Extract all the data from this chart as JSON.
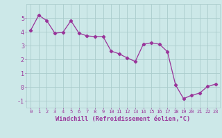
{
  "x": [
    0,
    1,
    2,
    3,
    4,
    5,
    6,
    7,
    8,
    9,
    10,
    11,
    12,
    13,
    14,
    15,
    16,
    17,
    18,
    19,
    20,
    21,
    22,
    23
  ],
  "y": [
    4.1,
    5.2,
    4.8,
    3.9,
    3.95,
    4.8,
    3.9,
    3.7,
    3.65,
    3.65,
    2.6,
    2.4,
    2.1,
    1.85,
    3.1,
    3.2,
    3.1,
    2.55,
    0.15,
    -0.85,
    -0.6,
    -0.45,
    0.05,
    0.2
  ],
  "line_color": "#993399",
  "marker": "D",
  "marker_size": 2.2,
  "bg_color": "#cce8e8",
  "grid_color": "#aacccc",
  "xlabel": "Windchill (Refroidissement éolien,°C)",
  "xlim": [
    -0.5,
    23.5
  ],
  "ylim": [
    -1.5,
    6.0
  ],
  "yticks": [
    -1,
    0,
    1,
    2,
    3,
    4,
    5
  ],
  "xticks": [
    0,
    1,
    2,
    3,
    4,
    5,
    6,
    7,
    8,
    9,
    10,
    11,
    12,
    13,
    14,
    15,
    16,
    17,
    18,
    19,
    20,
    21,
    22,
    23
  ],
  "tick_color": "#993399",
  "label_color": "#993399",
  "xtick_fontsize": 5.0,
  "ytick_fontsize": 6.0,
  "xlabel_fontsize": 6.2
}
